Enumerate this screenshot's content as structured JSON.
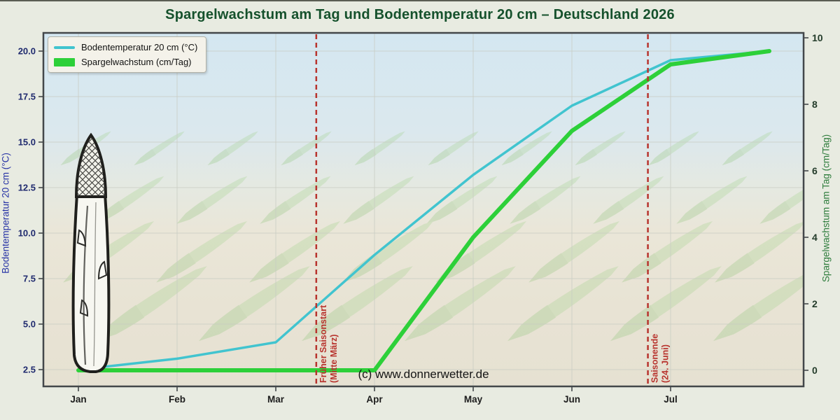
{
  "title": "Spargelwachstum am Tag und Bodentemperatur 20 cm – Deutschland 2026",
  "watermark": "(c) www.donnerwetter.de",
  "legend": {
    "items": [
      {
        "label": "Bodentemperatur 20 cm (°C)",
        "color": "#41c4cf",
        "swatch": "line"
      },
      {
        "label": "Spargelwachstum (cm/Tag)",
        "color": "#2dd039",
        "swatch": "band"
      }
    ]
  },
  "axes": {
    "x": {
      "tick_labels": [
        "Jan",
        "Feb",
        "Mar",
        "Apr",
        "May",
        "Jun",
        "Jul"
      ],
      "label_color": "#1d1d1d"
    },
    "y_left": {
      "title": "Bodentemperatur 20 cm (°C)",
      "tick_values": [
        20.0,
        17.5,
        15.0,
        12.5,
        10.0,
        7.5,
        5.0,
        2.5
      ],
      "tick_labels": [
        "20.0",
        "17.5",
        "15.0",
        "12.5",
        "10.0",
        "7.5",
        "5.0",
        "2.5"
      ],
      "range_shown": [
        1.6,
        21.0
      ],
      "title_color": "#2935a6",
      "tick_color": "#1f2a6e"
    },
    "y_right": {
      "title": "Spargelwachstum am Tag (cm/Tag)",
      "tick_values": [
        10,
        8,
        6,
        4,
        2,
        0
      ],
      "tick_labels": [
        "10",
        "8",
        "6",
        "4",
        "2",
        "0"
      ],
      "range_shown": [
        -0.5,
        10.2
      ],
      "title_color": "#2e7c3c",
      "tick_color": "#243c2b"
    }
  },
  "chart_data": {
    "type": "line",
    "x_unit": "months since 1 Jan (0 = 1 Jan ... 7 = 1 Aug)",
    "x": [
      0,
      1,
      2,
      3,
      4,
      5,
      6,
      7
    ],
    "series": [
      {
        "name": "Bodentemperatur 20 cm (°C)",
        "axis": "left",
        "color": "#41c4cf",
        "width": 3.5,
        "values": [
          2.5,
          3.1,
          4.0,
          8.8,
          13.2,
          17.0,
          19.5,
          20.0
        ]
      },
      {
        "name": "Spargelwachstum (cm/Tag)",
        "axis": "right",
        "color": "#2dd039",
        "width": 6,
        "values": [
          0,
          0,
          0,
          0,
          4.0,
          7.2,
          9.2,
          9.6
        ]
      }
    ],
    "annotations": [
      {
        "x": 2.41,
        "line1": "Früher Saisonstart",
        "line2": "(Mitte März)",
        "color": "#b8342e"
      },
      {
        "x": 5.77,
        "line1": "Saisonende",
        "line2": "(24. Juni)",
        "color": "#b8342e"
      }
    ],
    "grid": true,
    "legend_position": "upper-left"
  }
}
